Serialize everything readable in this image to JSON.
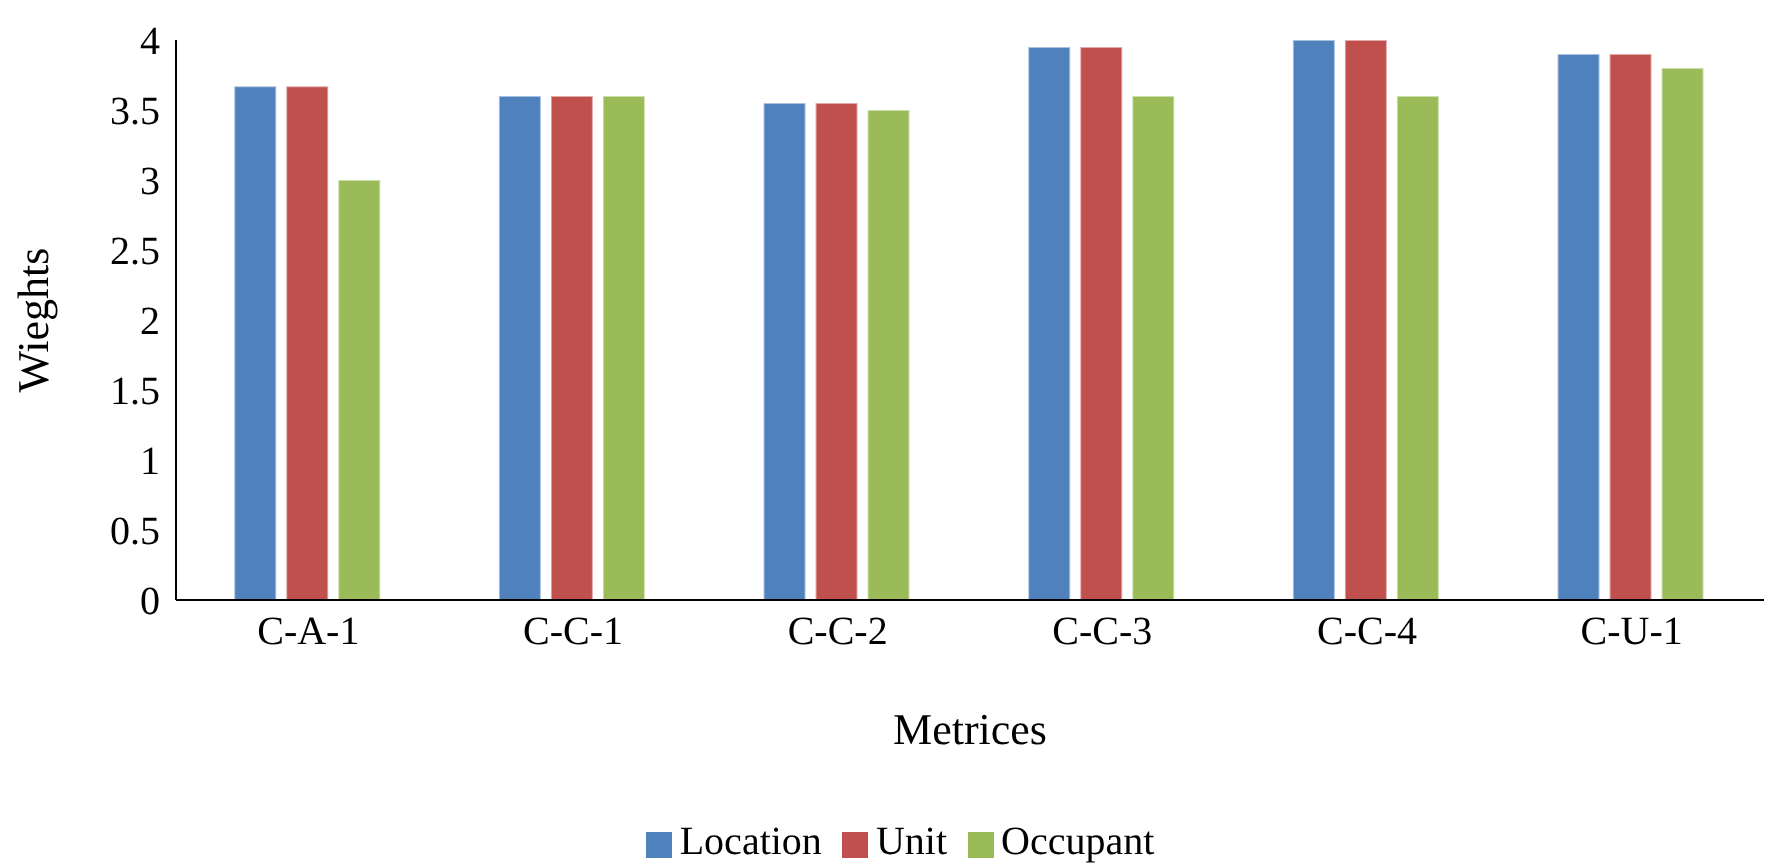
{
  "chart_data": {
    "type": "bar",
    "xlabel": "Metrices",
    "ylabel": "Wieghts",
    "categories": [
      "C-A-1",
      "C-C-1",
      "C-C-2",
      "C-C-3",
      "C-C-4",
      "C-U-1"
    ],
    "series": [
      {
        "name": "Location",
        "color": "#4f81bd",
        "values": [
          3.67,
          3.6,
          3.55,
          3.95,
          4.0,
          3.9
        ]
      },
      {
        "name": "Unit",
        "color": "#c0504d",
        "values": [
          3.67,
          3.6,
          3.55,
          3.95,
          4.0,
          3.9
        ]
      },
      {
        "name": "Occupant",
        "color": "#9bbb59",
        "values": [
          3.0,
          3.6,
          3.5,
          3.6,
          3.6,
          3.8
        ]
      }
    ],
    "ylim": [
      0,
      4
    ],
    "yticks": [
      0,
      0.5,
      1,
      1.5,
      2,
      2.5,
      3,
      3.5,
      4
    ],
    "grid": false,
    "legend": "bottom"
  }
}
